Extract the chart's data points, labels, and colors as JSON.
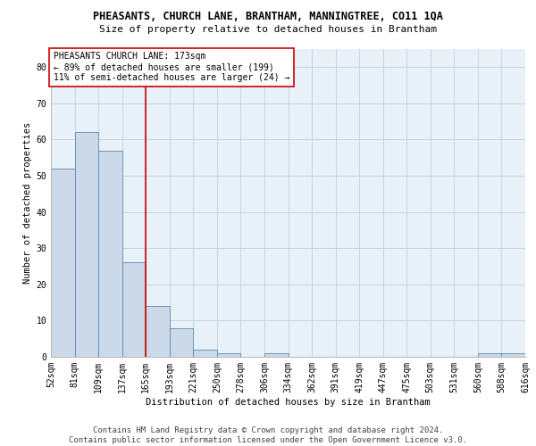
{
  "title": "PHEASANTS, CHURCH LANE, BRANTHAM, MANNINGTREE, CO11 1QA",
  "subtitle": "Size of property relative to detached houses in Brantham",
  "xlabel": "Distribution of detached houses by size in Brantham",
  "ylabel": "Number of detached properties",
  "bar_values": [
    52,
    62,
    57,
    26,
    14,
    8,
    2,
    1,
    0,
    1,
    0,
    0,
    0,
    0,
    0,
    0,
    0,
    0,
    1,
    1
  ],
  "bar_labels": [
    "52sqm",
    "81sqm",
    "109sqm",
    "137sqm",
    "165sqm",
    "193sqm",
    "221sqm",
    "250sqm",
    "278sqm",
    "306sqm",
    "334sqm",
    "362sqm",
    "391sqm",
    "419sqm",
    "447sqm",
    "475sqm",
    "503sqm",
    "531sqm",
    "560sqm",
    "588sqm",
    "616sqm"
  ],
  "bar_color": "#ccd9e8",
  "bar_edge_color": "#5a8ab0",
  "grid_color": "#c0d0e0",
  "background_color": "#e8f0f8",
  "vline_color": "#cc0000",
  "annotation_text": "PHEASANTS CHURCH LANE: 173sqm\n← 89% of detached houses are smaller (199)\n11% of semi-detached houses are larger (24) →",
  "annotation_box_color": "#ffffff",
  "annotation_box_edge": "#cc0000",
  "ylim": [
    0,
    85
  ],
  "yticks": [
    0,
    10,
    20,
    30,
    40,
    50,
    60,
    70,
    80
  ],
  "footer_line1": "Contains HM Land Registry data © Crown copyright and database right 2024.",
  "footer_line2": "Contains public sector information licensed under the Open Government Licence v3.0.",
  "title_fontsize": 8.5,
  "subtitle_fontsize": 8,
  "label_fontsize": 7.5,
  "tick_fontsize": 7,
  "annotation_fontsize": 7,
  "footer_fontsize": 6.5
}
